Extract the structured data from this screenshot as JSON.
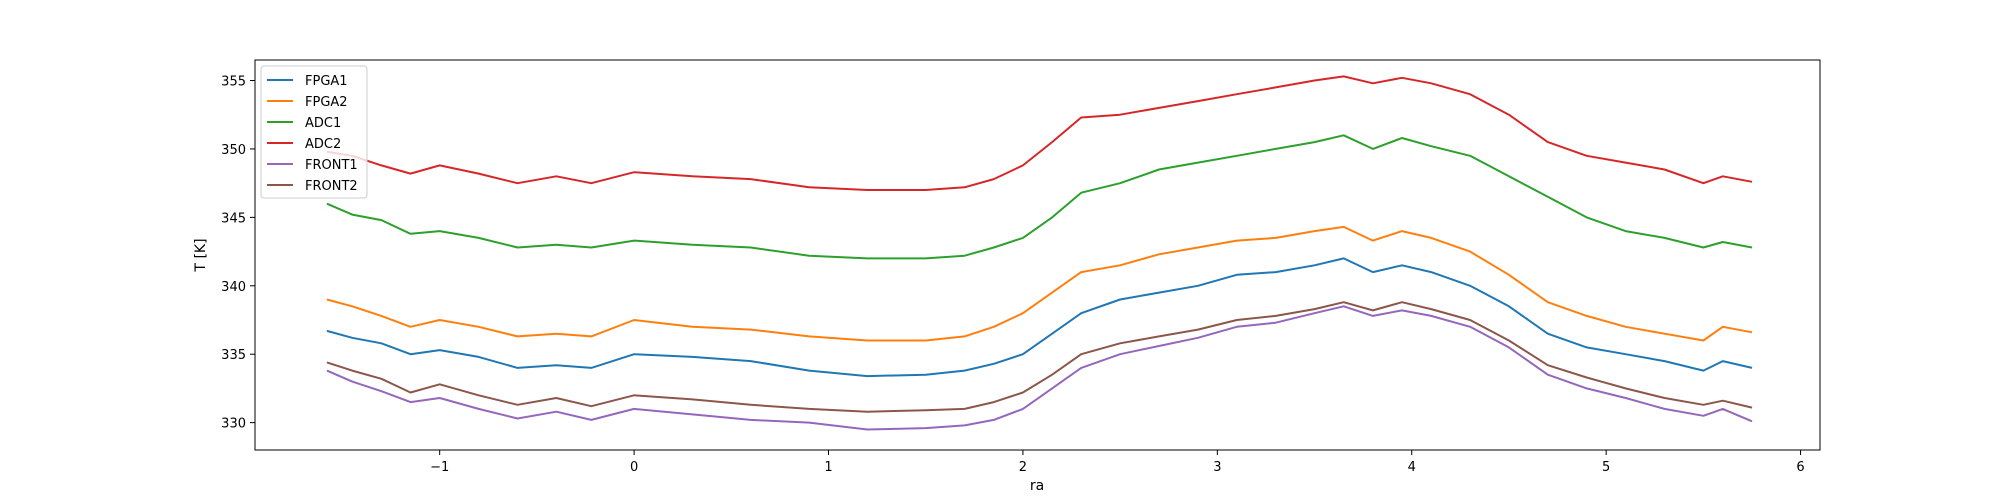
{
  "chart_data": {
    "type": "line",
    "title": "",
    "xlabel": "ra",
    "ylabel": "T [K]",
    "xlim": [
      -1.95,
      6.1
    ],
    "ylim": [
      328,
      356.5
    ],
    "xticks": [
      -1,
      0,
      1,
      2,
      3,
      4,
      5,
      6
    ],
    "xtick_labels": [
      "−1",
      "0",
      "1",
      "2",
      "3",
      "4",
      "5",
      "6"
    ],
    "yticks": [
      330,
      335,
      340,
      345,
      350,
      355
    ],
    "ytick_labels": [
      "330",
      "335",
      "340",
      "345",
      "350",
      "355"
    ],
    "grid": false,
    "legend_position": "top-left",
    "x": [
      -1.58,
      -1.45,
      -1.3,
      -1.15,
      -1.0,
      -0.8,
      -0.6,
      -0.4,
      -0.22,
      0.0,
      0.3,
      0.6,
      0.9,
      1.2,
      1.5,
      1.7,
      1.85,
      2.0,
      2.15,
      2.3,
      2.5,
      2.7,
      2.9,
      3.1,
      3.3,
      3.5,
      3.65,
      3.8,
      3.95,
      4.1,
      4.3,
      4.5,
      4.7,
      4.9,
      5.1,
      5.3,
      5.5,
      5.6,
      5.75
    ],
    "series": [
      {
        "name": "FPGA1",
        "color": "#1f77b4",
        "values": [
          336.7,
          336.2,
          335.8,
          335.0,
          335.3,
          334.8,
          334.0,
          334.2,
          334.0,
          335.0,
          334.8,
          334.5,
          333.8,
          333.4,
          333.5,
          333.8,
          334.3,
          335.0,
          336.5,
          338.0,
          339.0,
          339.5,
          340.0,
          340.8,
          341.0,
          341.5,
          342.0,
          341.0,
          341.5,
          341.0,
          340.0,
          338.5,
          336.5,
          335.5,
          335.0,
          334.5,
          333.8,
          334.5,
          334.0
        ]
      },
      {
        "name": "FPGA2",
        "color": "#ff7f0e",
        "values": [
          339.0,
          338.5,
          337.8,
          337.0,
          337.5,
          337.0,
          336.3,
          336.5,
          336.3,
          337.5,
          337.0,
          336.8,
          336.3,
          336.0,
          336.0,
          336.3,
          337.0,
          338.0,
          339.5,
          341.0,
          341.5,
          342.3,
          342.8,
          343.3,
          343.5,
          344.0,
          344.3,
          343.3,
          344.0,
          343.5,
          342.5,
          340.8,
          338.8,
          337.8,
          337.0,
          336.5,
          336.0,
          337.0,
          336.6
        ]
      },
      {
        "name": "ADC1",
        "color": "#2ca02c",
        "values": [
          346.0,
          345.2,
          344.8,
          343.8,
          344.0,
          343.5,
          342.8,
          343.0,
          342.8,
          343.3,
          343.0,
          342.8,
          342.2,
          342.0,
          342.0,
          342.2,
          342.8,
          343.5,
          345.0,
          346.8,
          347.5,
          348.5,
          349.0,
          349.5,
          350.0,
          350.5,
          351.0,
          350.0,
          350.8,
          350.2,
          349.5,
          348.0,
          346.5,
          345.0,
          344.0,
          343.5,
          342.8,
          343.2,
          342.8
        ]
      },
      {
        "name": "ADC2",
        "color": "#d62728",
        "values": [
          349.8,
          349.5,
          348.8,
          348.2,
          348.8,
          348.2,
          347.5,
          348.0,
          347.5,
          348.3,
          348.0,
          347.8,
          347.2,
          347.0,
          347.0,
          347.2,
          347.8,
          348.8,
          350.5,
          352.3,
          352.5,
          353.0,
          353.5,
          354.0,
          354.5,
          355.0,
          355.3,
          354.8,
          355.2,
          354.8,
          354.0,
          352.5,
          350.5,
          349.5,
          349.0,
          348.5,
          347.5,
          348.0,
          347.6
        ]
      },
      {
        "name": "FRONT1",
        "color": "#9467bd",
        "values": [
          333.8,
          333.0,
          332.3,
          331.5,
          331.8,
          331.0,
          330.3,
          330.8,
          330.2,
          331.0,
          330.6,
          330.2,
          330.0,
          329.5,
          329.6,
          329.8,
          330.2,
          331.0,
          332.5,
          334.0,
          335.0,
          335.6,
          336.2,
          337.0,
          337.3,
          338.0,
          338.5,
          337.8,
          338.2,
          337.8,
          337.0,
          335.5,
          333.5,
          332.5,
          331.8,
          331.0,
          330.5,
          331.0,
          330.1
        ]
      },
      {
        "name": "FRONT2",
        "color": "#8c564b",
        "values": [
          334.4,
          333.8,
          333.2,
          332.2,
          332.8,
          332.0,
          331.3,
          331.8,
          331.2,
          332.0,
          331.7,
          331.3,
          331.0,
          330.8,
          330.9,
          331.0,
          331.5,
          332.2,
          333.5,
          335.0,
          335.8,
          336.3,
          336.8,
          337.5,
          337.8,
          338.3,
          338.8,
          338.2,
          338.8,
          338.3,
          337.5,
          336.0,
          334.2,
          333.3,
          332.5,
          331.8,
          331.3,
          331.6,
          331.1
        ]
      }
    ]
  }
}
